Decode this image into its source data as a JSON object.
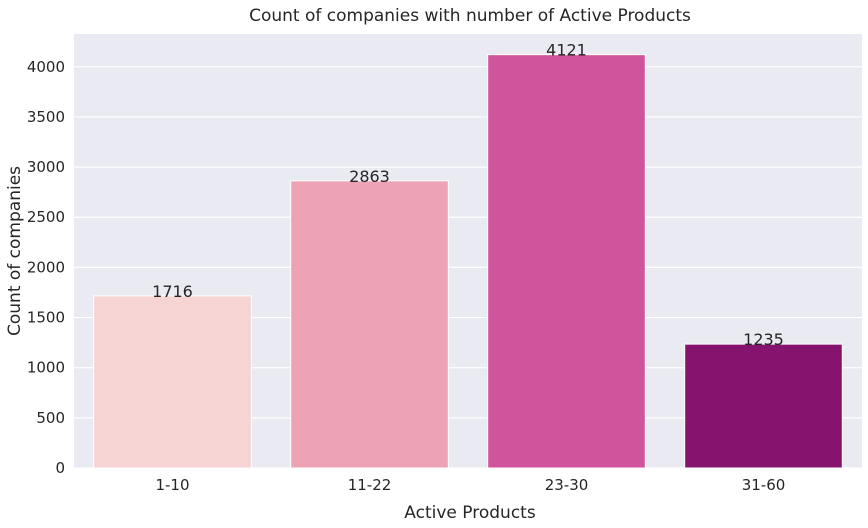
{
  "chart_data": {
    "type": "bar",
    "title": "Count of companies with number of Active Products",
    "xlabel": "Active Products",
    "ylabel": "Count of companies",
    "categories": [
      "1-10",
      "11-22",
      "23-30",
      "31-60"
    ],
    "values": [
      1716,
      2863,
      4121,
      1235
    ],
    "data_labels": [
      "1716",
      "2863",
      "4121",
      "1235"
    ],
    "colors": [
      "#f7d4d4",
      "#eda2b6",
      "#d0549b",
      "#86146f"
    ],
    "yticks": [
      0,
      500,
      1000,
      1500,
      2000,
      2500,
      3000,
      3500,
      4000
    ],
    "ylim": [
      0,
      4327
    ],
    "grid": true,
    "background_color": "#eaeaf2",
    "grid_color": "#ffffff",
    "legend": "none"
  }
}
